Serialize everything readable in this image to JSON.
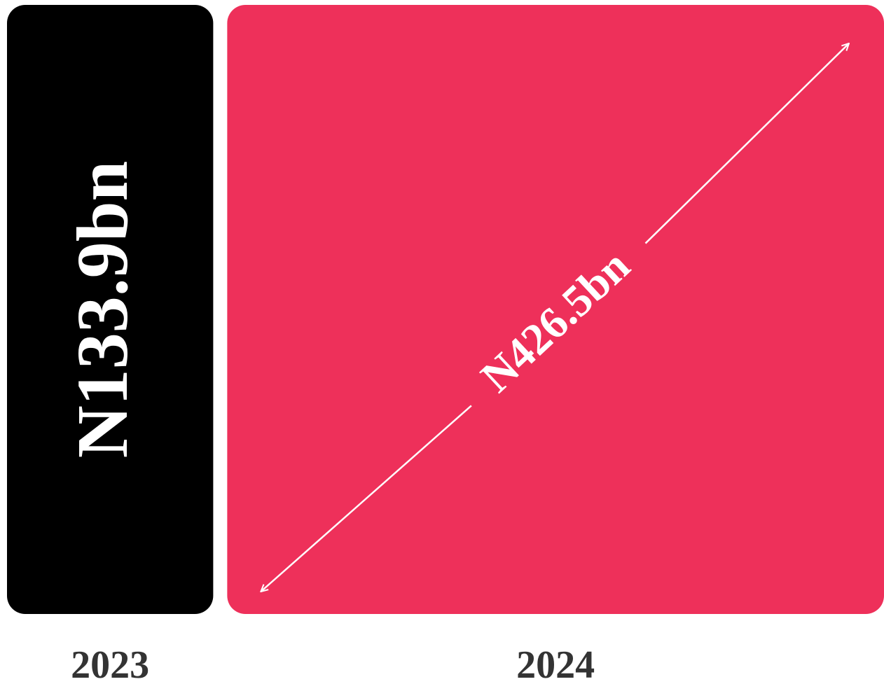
{
  "chart_data": {
    "type": "bar",
    "categories": [
      "2023",
      "2024"
    ],
    "values": [
      133.9,
      426.5
    ],
    "value_labels": [
      "N133.9bn",
      "N426.5bn"
    ],
    "colors": [
      "#000000",
      "#ee305a"
    ]
  }
}
